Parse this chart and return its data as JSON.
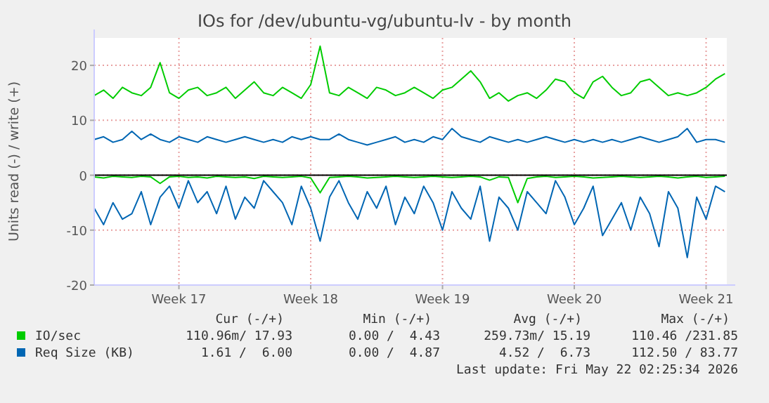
{
  "chart_data": {
    "type": "line",
    "title": "IOs for /dev/ubuntu-vg/ubuntu-lv - by month",
    "ylabel": "Units read (-) / write (+)",
    "x": [
      "2026-04-18T12:00",
      "2026-04-19T00:00",
      "2026-04-19T12:00",
      "2026-04-20T00:00",
      "2026-04-20T12:00",
      "2026-04-21T00:00",
      "2026-04-21T12:00",
      "2026-04-22T00:00",
      "2026-04-22T12:00",
      "2026-04-23T00:00",
      "2026-04-23T12:00",
      "2026-04-24T00:00",
      "2026-04-24T12:00",
      "2026-04-25T00:00",
      "2026-04-25T12:00",
      "2026-04-26T00:00",
      "2026-04-26T12:00",
      "2026-04-27T00:00",
      "2026-04-27T12:00",
      "2026-04-28T00:00",
      "2026-04-28T12:00",
      "2026-04-29T00:00",
      "2026-04-29T12:00",
      "2026-04-30T00:00",
      "2026-04-30T12:00",
      "2026-05-01T00:00",
      "2026-05-01T12:00",
      "2026-05-02T00:00",
      "2026-05-02T12:00",
      "2026-05-03T00:00",
      "2026-05-03T12:00",
      "2026-05-04T00:00",
      "2026-05-04T12:00",
      "2026-05-05T00:00",
      "2026-05-05T12:00",
      "2026-05-06T00:00",
      "2026-05-06T12:00",
      "2026-05-07T00:00",
      "2026-05-07T12:00",
      "2026-05-08T00:00",
      "2026-05-08T12:00",
      "2026-05-09T00:00",
      "2026-05-09T12:00",
      "2026-05-10T00:00",
      "2026-05-10T12:00",
      "2026-05-11T00:00",
      "2026-05-11T12:00",
      "2026-05-12T00:00",
      "2026-05-12T12:00",
      "2026-05-13T00:00",
      "2026-05-13T12:00",
      "2026-05-14T00:00",
      "2026-05-14T12:00",
      "2026-05-15T00:00",
      "2026-05-15T12:00",
      "2026-05-16T00:00",
      "2026-05-16T12:00",
      "2026-05-17T00:00",
      "2026-05-17T12:00",
      "2026-05-18T00:00",
      "2026-05-18T12:00",
      "2026-05-19T00:00",
      "2026-05-19T12:00",
      "2026-05-20T00:00",
      "2026-05-20T12:00",
      "2026-05-21T00:00",
      "2026-05-21T12:00",
      "2026-05-22T00:00"
    ],
    "series": [
      {
        "name": "IO/sec",
        "color": "#00cc00",
        "values": [
          14.5,
          15.5,
          14,
          16,
          15,
          14.5,
          16,
          20.5,
          15,
          14,
          15.5,
          16,
          14.5,
          15,
          16,
          14,
          15.5,
          17,
          15,
          14.5,
          16,
          15,
          14,
          16.5,
          23.5,
          15,
          14.5,
          16,
          15,
          14,
          16,
          15.5,
          14.5,
          15,
          16,
          15,
          14,
          15.5,
          16,
          17.5,
          19,
          17,
          14,
          15,
          13.5,
          14.5,
          15,
          14,
          15.5,
          17.5,
          17,
          15,
          14,
          17,
          18,
          16,
          14.5,
          15,
          17,
          17.5,
          16,
          14.5,
          15,
          14.5,
          15,
          16,
          17.5,
          18.5
        ]
      },
      {
        "name": "Req Size (KB)",
        "color": "#0066b3",
        "values": [
          6.5,
          7,
          6,
          6.5,
          8,
          6.5,
          7.5,
          6.5,
          6,
          7,
          6.5,
          6,
          7,
          6.5,
          6,
          6.5,
          7,
          6.5,
          6,
          6.5,
          6,
          7,
          6.5,
          7,
          6.5,
          6.5,
          7.5,
          6.5,
          6,
          5.5,
          6,
          6.5,
          7,
          6,
          6.5,
          6,
          7,
          6.5,
          8.5,
          7,
          6.5,
          6,
          7,
          6.5,
          6,
          6.5,
          6,
          6.5,
          7,
          6.5,
          6,
          6.5,
          6,
          6.5,
          6,
          6.5,
          6,
          6.5,
          7,
          6.5,
          6,
          6.5,
          7,
          8.5,
          6,
          6.5,
          6.5,
          6
        ]
      },
      {
        "color": "#0066b3",
        "values": [
          -6,
          -9,
          -5,
          -8,
          -7,
          -3,
          -9,
          -4,
          -2,
          -6,
          -1,
          -5,
          -3,
          -7,
          -2,
          -8,
          -4,
          -6,
          -1,
          -3,
          -5,
          -9,
          -2,
          -6,
          -12,
          -4,
          -1,
          -5,
          -8,
          -3,
          -6,
          -2,
          -9,
          -4,
          -7,
          -2,
          -5,
          -10,
          -3,
          -6,
          -8,
          -2,
          -12,
          -4,
          -6,
          -10,
          -3,
          -5,
          -7,
          -1,
          -4,
          -9,
          -6,
          -2,
          -11,
          -8,
          -5,
          -10,
          -4,
          -7,
          -13,
          -3,
          -6,
          -15,
          -4,
          -8,
          -2,
          -3
        ]
      },
      {
        "color": "#00cc00",
        "values": [
          -0.3,
          -0.5,
          -0.2,
          -0.3,
          -0.4,
          -0.2,
          -0.3,
          -1.5,
          -0.3,
          -0.2,
          -0.4,
          -0.3,
          -0.5,
          -0.2,
          -0.3,
          -0.4,
          -0.3,
          -0.6,
          -0.2,
          -0.3,
          -0.4,
          -0.3,
          -0.2,
          -0.5,
          -3.2,
          -0.4,
          -0.3,
          -0.2,
          -0.3,
          -0.5,
          -0.4,
          -0.3,
          -0.2,
          -0.3,
          -0.4,
          -0.3,
          -0.2,
          -0.3,
          -0.4,
          -0.3,
          -0.2,
          -0.3,
          -0.9,
          -0.3,
          -0.4,
          -5,
          -0.6,
          -0.3,
          -0.2,
          -0.4,
          -0.3,
          -0.2,
          -0.3,
          -0.5,
          -0.4,
          -0.3,
          -0.2,
          -0.3,
          -0.4,
          -0.3,
          -0.2,
          -0.3,
          -0.5,
          -0.3,
          -0.2,
          -0.4,
          -0.3,
          -0.2
        ]
      }
    ],
    "xlim": [
      "2026-04-18T12:00",
      "2026-05-22T02:25"
    ],
    "xticks": [
      {
        "value": "2026-04-23",
        "label": "Week 17"
      },
      {
        "value": "2026-04-30",
        "label": "Week 18"
      },
      {
        "value": "2026-05-07",
        "label": "Week 19"
      },
      {
        "value": "2026-05-14",
        "label": "Week 20"
      },
      {
        "value": "2026-05-21",
        "label": "Week 21"
      }
    ],
    "ylim": [
      -20,
      25
    ],
    "yticks": [
      -20,
      -10,
      0,
      10,
      20
    ],
    "ref_lines": [
      {
        "axis": "y",
        "value": 0,
        "color": "#000000"
      }
    ],
    "grid": true,
    "legend": "bottom",
    "annotations": [
      "Cur (-/+)",
      "Min (-/+)",
      "Avg (-/+)",
      "Max (-/+)",
      "110.96m/ 17.93",
      "0.00 /  4.43",
      "259.73m/ 15.19",
      "110.46 /231.85",
      "1.61 /  6.00",
      "0.00 /  4.87",
      "4.52 /  6.73",
      "112.50 / 83.77",
      "Last update: Fri May 22 02:25:34 2026"
    ]
  }
}
